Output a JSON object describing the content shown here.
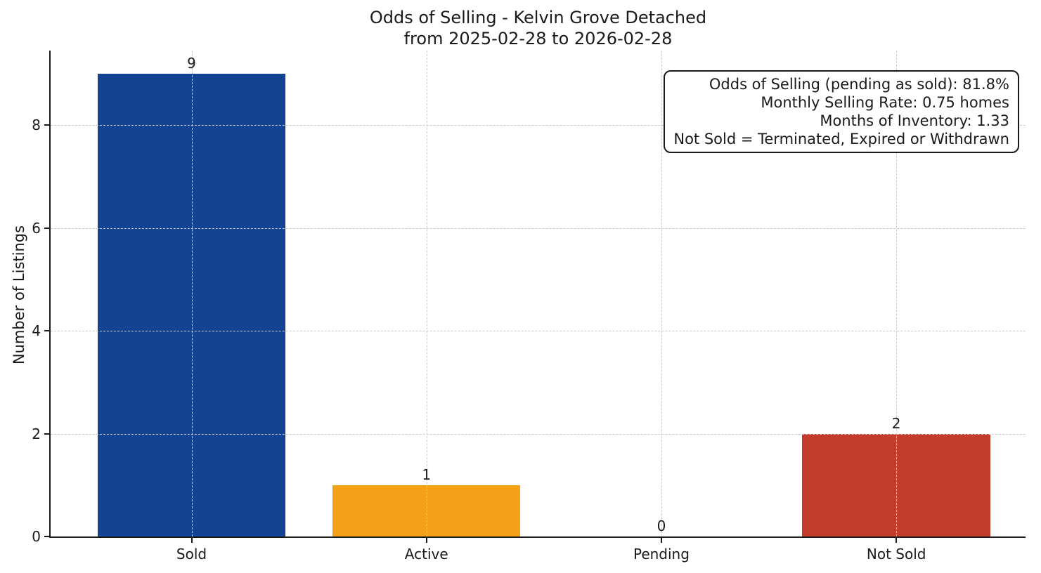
{
  "chart_data": {
    "type": "bar",
    "title": "Odds of Selling - Kelvin Grove Detached",
    "subtitle": "from 2025-02-28 to 2026-02-28",
    "xlabel": "",
    "ylabel": "Number of Listings",
    "categories": [
      "Sold",
      "Active",
      "Pending",
      "Not Sold"
    ],
    "values": [
      9,
      1,
      0,
      2
    ],
    "bar_colors": [
      "#134392",
      "#F5A118",
      null,
      "#C23B2B"
    ],
    "yticks": [
      0,
      2,
      4,
      6,
      8
    ],
    "ylim": [
      0,
      9.45
    ],
    "xlim": [
      -0.6,
      3.55
    ],
    "bar_half_width": 0.4,
    "grid": {
      "style": "dashed",
      "axes": "both",
      "color": "#cbcbcb",
      "on": true
    },
    "legend": "none",
    "annotations": [
      "Odds of Selling (pending as sold): 81.8%",
      "Monthly Selling Rate: 0.75 homes",
      "Months of Inventory: 1.33",
      "Not Sold = Terminated, Expired or Withdrawn"
    ],
    "colors": {
      "sold_bar": "#134392",
      "active_bar": "#F5A118",
      "not_sold_bar": "#C23B2B",
      "axis": "#1a1a1a",
      "background": "#ffffff"
    }
  }
}
